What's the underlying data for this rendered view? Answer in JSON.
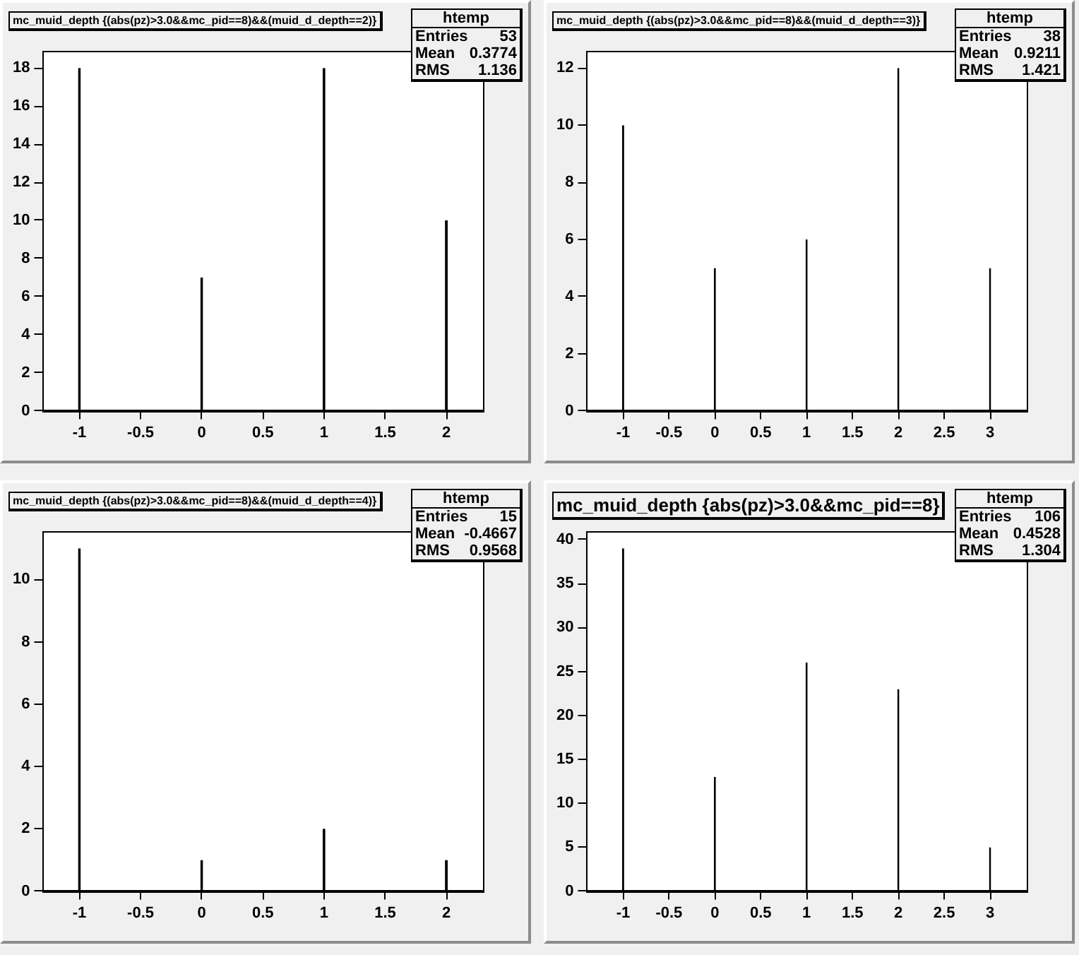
{
  "chart_data": [
    {
      "type": "bar",
      "title": "mc_muid_depth {(abs(pz)>3.0&&mc_pid==8)&&(muid_d_depth==2)}",
      "x": [
        -1,
        0,
        1,
        2
      ],
      "values": [
        18,
        7,
        18,
        10
      ],
      "color": "#000000",
      "xlim": [
        -1.3,
        2.3
      ],
      "xticks": [
        -1,
        -0.5,
        0,
        0.5,
        1,
        1.5,
        2
      ],
      "ylim": [
        0,
        18.9
      ],
      "yticks": [
        0,
        2,
        4,
        6,
        8,
        10,
        12,
        14,
        16,
        18
      ],
      "annotations": [
        "htemp",
        "Entries 53",
        "Mean 0.3774",
        "RMS 1.136"
      ]
    },
    {
      "type": "bar",
      "title": "mc_muid_depth {(abs(pz)>3.0&&mc_pid==8)&&(muid_d_depth==3)}",
      "x": [
        -1,
        0,
        1,
        2,
        3
      ],
      "values": [
        10,
        5,
        6,
        12,
        5
      ],
      "color": "#000000",
      "xlim": [
        -1.4,
        3.4
      ],
      "xticks": [
        -1,
        -0.5,
        0,
        0.5,
        1,
        1.5,
        2,
        2.5,
        3
      ],
      "ylim": [
        0,
        12.6
      ],
      "yticks": [
        0,
        2,
        4,
        6,
        8,
        10,
        12
      ],
      "annotations": [
        "htemp",
        "Entries 38",
        "Mean 0.9211",
        "RMS 1.421"
      ]
    },
    {
      "type": "bar",
      "title": "mc_muid_depth {(abs(pz)>3.0&&mc_pid==8)&&(muid_d_depth==4)}",
      "x": [
        -1,
        0,
        1,
        2
      ],
      "values": [
        11,
        1,
        2,
        1
      ],
      "color": "#000000",
      "xlim": [
        -1.3,
        2.3
      ],
      "xticks": [
        -1,
        -0.5,
        0,
        0.5,
        1,
        1.5,
        2
      ],
      "ylim": [
        0,
        11.55
      ],
      "yticks": [
        0,
        2,
        4,
        6,
        8,
        10
      ],
      "annotations": [
        "htemp",
        "Entries 15",
        "Mean -0.4667",
        "RMS 0.9568"
      ]
    },
    {
      "type": "bar",
      "title": "mc_muid_depth {abs(pz)>3.0&&mc_pid==8}",
      "x": [
        -1,
        0,
        1,
        2,
        3
      ],
      "values": [
        39,
        13,
        26,
        23,
        5
      ],
      "color": "#000000",
      "xlim": [
        -1.4,
        3.4
      ],
      "xticks": [
        -1,
        -0.5,
        0,
        0.5,
        1,
        1.5,
        2,
        2.5,
        3
      ],
      "ylim": [
        0,
        40.95
      ],
      "yticks": [
        0,
        5,
        10,
        15,
        20,
        25,
        30,
        35,
        40
      ],
      "annotations": [
        "htemp",
        "Entries 106",
        "Mean 0.4528",
        "RMS 1.304"
      ]
    }
  ]
}
